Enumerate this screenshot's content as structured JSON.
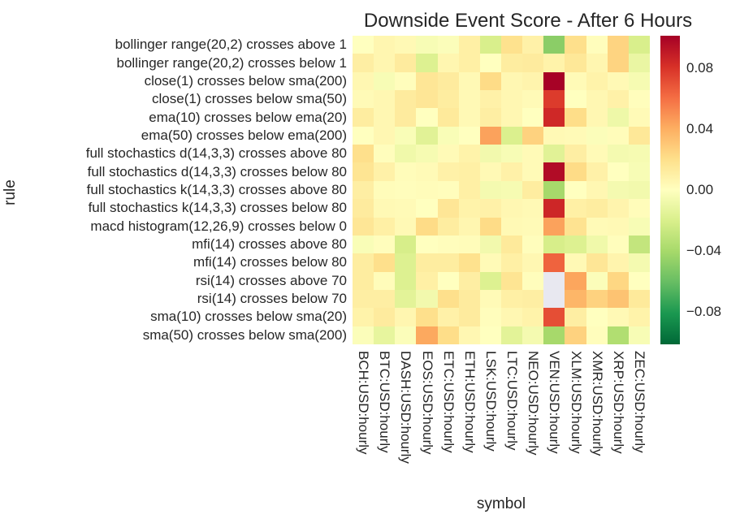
{
  "chart_data": {
    "type": "heatmap",
    "title": "Downside Event Score - After 6 Hours",
    "xlabel": "symbol",
    "ylabel": "rule",
    "x_categories": [
      "BCH:USD:hourly",
      "BTC:USD:hourly",
      "DASH:USD:hourly",
      "EOS:USD:hourly",
      "ETC:USD:hourly",
      "ETH:USD:hourly",
      "LSK:USD:hourly",
      "LTC:USD:hourly",
      "NEO:USD:hourly",
      "VEN:USD:hourly",
      "XLM:USD:hourly",
      "XMR:USD:hourly",
      "XRP:USD:hourly",
      "ZEC:USD:hourly"
    ],
    "y_categories": [
      "bollinger range(20,2) crosses above 1",
      "bollinger range(20,2) crosses below 1",
      "close(1) crosses below sma(200)",
      "close(1) crosses below sma(50)",
      "ema(10) crosses below ema(20)",
      "ema(50) crosses below ema(200)",
      "full stochastics d(14,3,3) crosses above 80",
      "full stochastics d(14,3,3) crosses below 80",
      "full stochastics k(14,3,3) crosses above 80",
      "full stochastics k(14,3,3) crosses below 80",
      "macd histogram(12,26,9) crosses below 0",
      "mfi(14) crosses above 80",
      "mfi(14) crosses below 80",
      "rsi(14) crosses above 70",
      "rsi(14) crosses below 70",
      "sma(10) crosses below sma(20)",
      "sma(50) crosses below sma(200)"
    ],
    "values": [
      [
        0.0,
        0.006,
        0.004,
        -0.004,
        -0.002,
        0.01,
        -0.02,
        0.019,
        0.009,
        -0.049,
        0.02,
        0.001,
        0.025,
        -0.02
      ],
      [
        0.011,
        0.006,
        0.013,
        -0.018,
        0.006,
        0.01,
        0.0,
        0.012,
        0.013,
        0.008,
        0.015,
        0.006,
        0.025,
        -0.011
      ],
      [
        0.005,
        -0.004,
        0.001,
        0.016,
        0.013,
        0.004,
        0.022,
        0.005,
        0.007,
        0.1,
        0.003,
        0.008,
        0.004,
        -0.005
      ],
      [
        0.003,
        0.005,
        0.013,
        0.016,
        0.012,
        0.004,
        0.009,
        0.005,
        0.003,
        0.077,
        0.0,
        0.005,
        0.009,
        0.001
      ],
      [
        0.012,
        0.005,
        0.013,
        0.0,
        0.014,
        0.004,
        0.011,
        0.005,
        0.0,
        0.084,
        0.021,
        0.005,
        -0.009,
        0.003
      ],
      [
        0.0,
        0.005,
        -0.003,
        -0.016,
        -0.003,
        0.0,
        0.044,
        -0.019,
        0.026,
        0.004,
        0.003,
        -0.002,
        0.002,
        0.015
      ],
      [
        0.02,
        0.001,
        -0.008,
        -0.005,
        0.003,
        0.008,
        -0.007,
        -0.004,
        0.003,
        -0.016,
        0.011,
        0.003,
        -0.006,
        -0.005
      ],
      [
        0.017,
        0.009,
        0.002,
        0.003,
        0.009,
        0.01,
        0.004,
        0.009,
        0.003,
        0.096,
        0.022,
        0.009,
        0.0,
        -0.004
      ],
      [
        0.011,
        0.002,
        0.001,
        0.002,
        0.001,
        0.01,
        -0.006,
        -0.005,
        0.012,
        -0.04,
        0.0,
        0.005,
        -0.006,
        -0.007
      ],
      [
        0.013,
        0.004,
        0.003,
        0.0,
        0.016,
        0.008,
        0.009,
        0.005,
        0.004,
        0.085,
        0.01,
        0.012,
        0.007,
        0.002
      ],
      [
        0.016,
        0.01,
        0.004,
        0.022,
        0.012,
        0.006,
        0.022,
        0.004,
        0.003,
        0.044,
        0.018,
        0.003,
        0.004,
        -0.004
      ],
      [
        -0.003,
        0.001,
        -0.021,
        0.0,
        0.001,
        0.002,
        -0.007,
        0.014,
        0.001,
        -0.021,
        -0.018,
        -0.008,
        0.001,
        -0.029
      ],
      [
        0.012,
        0.02,
        -0.018,
        0.012,
        0.012,
        0.019,
        0.003,
        0.01,
        0.005,
        0.064,
        0.004,
        0.016,
        0.007,
        -0.006
      ],
      [
        0.012,
        0.002,
        -0.018,
        0.01,
        0.0,
        0.011,
        -0.018,
        0.017,
        0.001,
        null,
        0.043,
        -0.002,
        0.024,
        0.0
      ],
      [
        0.011,
        0.011,
        -0.015,
        -0.007,
        0.02,
        0.013,
        0.003,
        0.01,
        0.011,
        null,
        0.037,
        0.026,
        0.032,
        0.014
      ],
      [
        0.008,
        0.013,
        0.006,
        0.02,
        0.009,
        0.013,
        0.001,
        0.005,
        0.008,
        0.071,
        0.011,
        0.0,
        0.004,
        0.008
      ],
      [
        -0.002,
        -0.013,
        -0.002,
        0.042,
        0.021,
        0.005,
        0.0,
        -0.015,
        -0.006,
        -0.04,
        0.026,
        0.001,
        -0.036,
        -0.004
      ]
    ],
    "colormap": {
      "name": "RdYlGn_r",
      "vmin": -0.101,
      "vmax": 0.101,
      "stops": [
        "#006837",
        "#1a9850",
        "#66bd63",
        "#a6d96a",
        "#d9ef8b",
        "#ffffbf",
        "#fee08b",
        "#fdae61",
        "#f46d43",
        "#d73027",
        "#a50026"
      ]
    },
    "missing_value_color": "#e8e8f0",
    "colorbar": {
      "ticks": [
        {
          "label": "0.08",
          "value": 0.08
        },
        {
          "label": "0.04",
          "value": 0.04
        },
        {
          "label": "0.00",
          "value": 0.0
        },
        {
          "label": "−0.04",
          "value": -0.04
        },
        {
          "label": "−0.08",
          "value": -0.08
        }
      ],
      "position": "right"
    },
    "grid": false,
    "legend": false
  }
}
